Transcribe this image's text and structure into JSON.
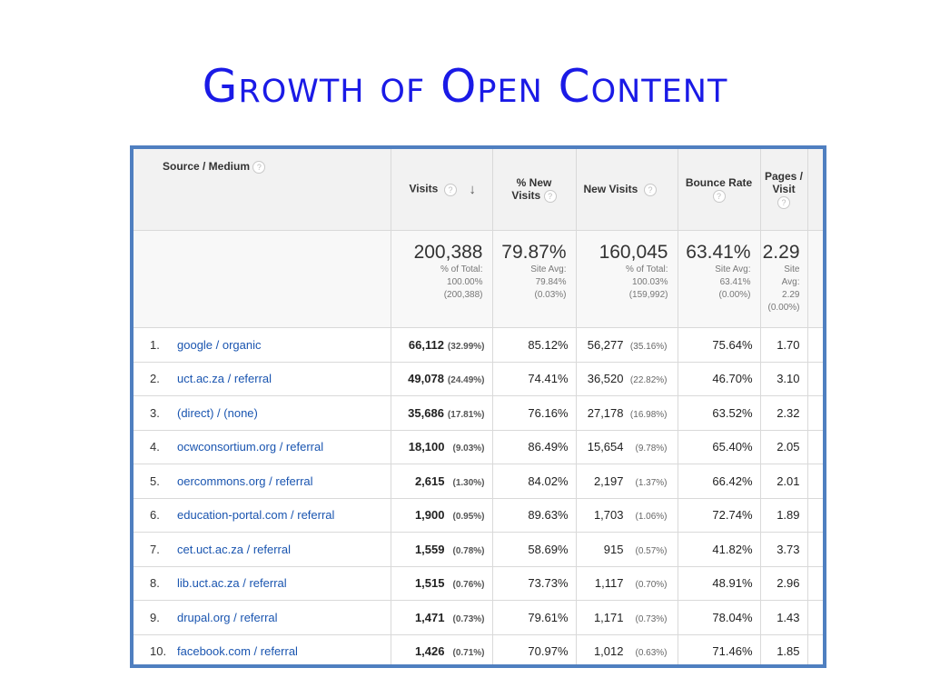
{
  "slide": {
    "title": "Growth of Open Content"
  },
  "table": {
    "headers": {
      "source": "Source / Medium",
      "visits": "Visits",
      "pct_new_line1": "% New",
      "pct_new_line2": "Visits",
      "new_visits": "New Visits",
      "bounce_rate": "Bounce Rate",
      "pages_line1": "Pages /",
      "pages_line2": "Visit"
    },
    "help_icon": "?",
    "sort_icon": "↓",
    "summary": {
      "visits": {
        "value": "200,388",
        "l1": "% of Total:",
        "l2": "100.00%",
        "l3": "(200,388)"
      },
      "pct_new": {
        "value": "79.87%",
        "l1": "Site Avg:",
        "l2": "79.84%",
        "l3": "(0.03%)"
      },
      "new_visits": {
        "value": "160,045",
        "l1": "% of Total:",
        "l2": "100.03%",
        "l3": "(159,992)"
      },
      "bounce": {
        "value": "63.41%",
        "l1": "Site Avg:",
        "l2": "63.41%",
        "l3": "(0.00%)"
      },
      "pages": {
        "value": "2.29",
        "l1": "Site",
        "l2": "Avg:",
        "l3": "2.29",
        "l4": "(0.00%)"
      }
    },
    "rows": [
      {
        "rank": "1.",
        "source": "google / organic",
        "visits": "66,112",
        "visits_pct": "(32.99%)",
        "pct_new": "85.12%",
        "new_visits": "56,277",
        "new_visits_pct": "(35.16%)",
        "bounce": "75.64%",
        "pages": "1.70"
      },
      {
        "rank": "2.",
        "source": "uct.ac.za / referral",
        "visits": "49,078",
        "visits_pct": "(24.49%)",
        "pct_new": "74.41%",
        "new_visits": "36,520",
        "new_visits_pct": "(22.82%)",
        "bounce": "46.70%",
        "pages": "3.10"
      },
      {
        "rank": "3.",
        "source": "(direct) / (none)",
        "visits": "35,686",
        "visits_pct": "(17.81%)",
        "pct_new": "76.16%",
        "new_visits": "27,178",
        "new_visits_pct": "(16.98%)",
        "bounce": "63.52%",
        "pages": "2.32"
      },
      {
        "rank": "4.",
        "source": "ocwconsortium.org / referral",
        "visits": "18,100",
        "visits_pct": "(9.03%)",
        "pct_new": "86.49%",
        "new_visits": "15,654",
        "new_visits_pct": "(9.78%)",
        "bounce": "65.40%",
        "pages": "2.05"
      },
      {
        "rank": "5.",
        "source": "oercommons.org / referral",
        "visits": "2,615",
        "visits_pct": "(1.30%)",
        "pct_new": "84.02%",
        "new_visits": "2,197",
        "new_visits_pct": "(1.37%)",
        "bounce": "66.42%",
        "pages": "2.01"
      },
      {
        "rank": "6.",
        "source": "education-portal.com / referral",
        "visits": "1,900",
        "visits_pct": "(0.95%)",
        "pct_new": "89.63%",
        "new_visits": "1,703",
        "new_visits_pct": "(1.06%)",
        "bounce": "72.74%",
        "pages": "1.89"
      },
      {
        "rank": "7.",
        "source": "cet.uct.ac.za / referral",
        "visits": "1,559",
        "visits_pct": "(0.78%)",
        "pct_new": "58.69%",
        "new_visits": "915",
        "new_visits_pct": "(0.57%)",
        "bounce": "41.82%",
        "pages": "3.73"
      },
      {
        "rank": "8.",
        "source": "lib.uct.ac.za / referral",
        "visits": "1,515",
        "visits_pct": "(0.76%)",
        "pct_new": "73.73%",
        "new_visits": "1,117",
        "new_visits_pct": "(0.70%)",
        "bounce": "48.91%",
        "pages": "2.96"
      },
      {
        "rank": "9.",
        "source": "drupal.org / referral",
        "visits": "1,471",
        "visits_pct": "(0.73%)",
        "pct_new": "79.61%",
        "new_visits": "1,171",
        "new_visits_pct": "(0.73%)",
        "bounce": "78.04%",
        "pages": "1.43"
      },
      {
        "rank": "10.",
        "source": "facebook.com / referral",
        "visits": "1,426",
        "visits_pct": "(0.71%)",
        "pct_new": "70.97%",
        "new_visits": "1,012",
        "new_visits_pct": "(0.63%)",
        "bounce": "71.46%",
        "pages": "1.85"
      }
    ]
  },
  "colors": {
    "title": "#1a1ae6",
    "frame": "#4f7fc0",
    "link": "#1a55b0"
  }
}
